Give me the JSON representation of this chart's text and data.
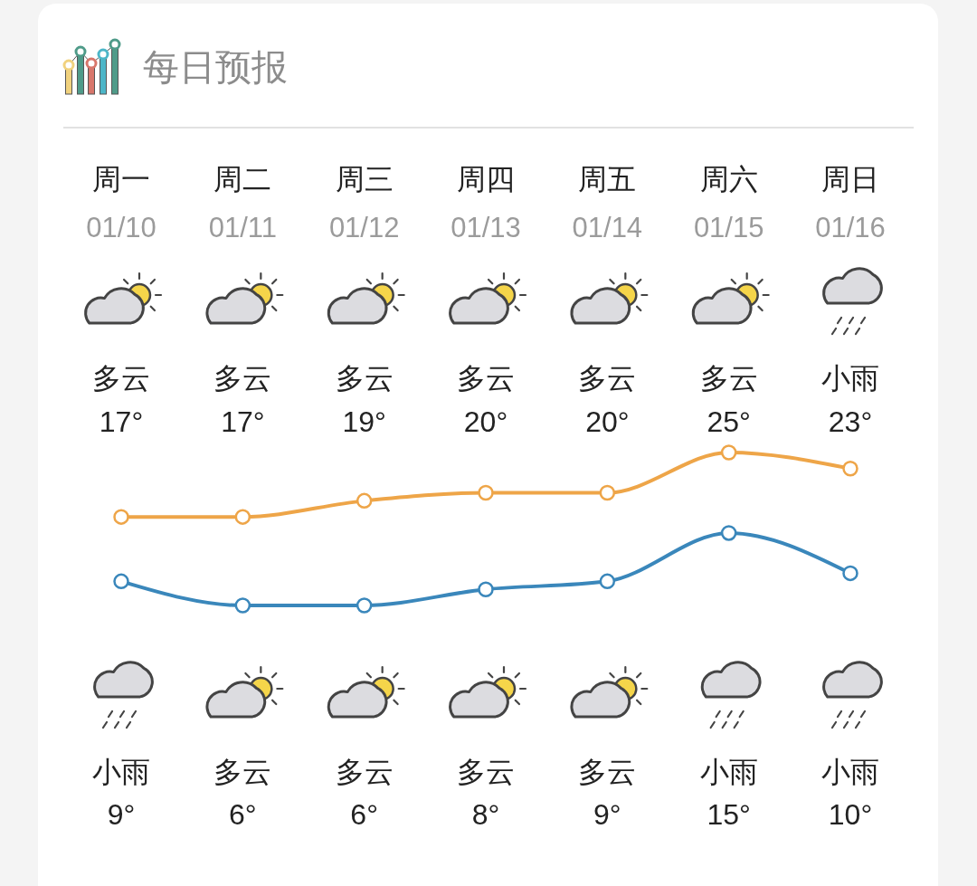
{
  "chart_data": {
    "type": "line",
    "title": "每日预报",
    "categories": [
      "周一\n01/10",
      "周二\n01/11",
      "周三\n01/12",
      "周四\n01/13",
      "周五\n01/14",
      "周六\n01/15",
      "周日\n01/16"
    ],
    "series": [
      {
        "color": "#eea548",
        "values": [
          17,
          17,
          19,
          20,
          20,
          25,
          23
        ],
        "value_labels": [
          "多云\n17°",
          "多云\n17°",
          "多云\n19°",
          "多云\n20°",
          "多云\n20°",
          "多云\n25°",
          "小雨\n23°"
        ]
      },
      {
        "color": "#3a87bb",
        "values": [
          9,
          6,
          6,
          8,
          9,
          15,
          10
        ],
        "value_labels": [
          "小雨\n9°",
          "多云\n6°",
          "多云\n6°",
          "多云\n8°",
          "多云\n9°",
          "小雨\n15°",
          "小雨\n10°"
        ]
      }
    ],
    "marker": "circle"
  }
}
